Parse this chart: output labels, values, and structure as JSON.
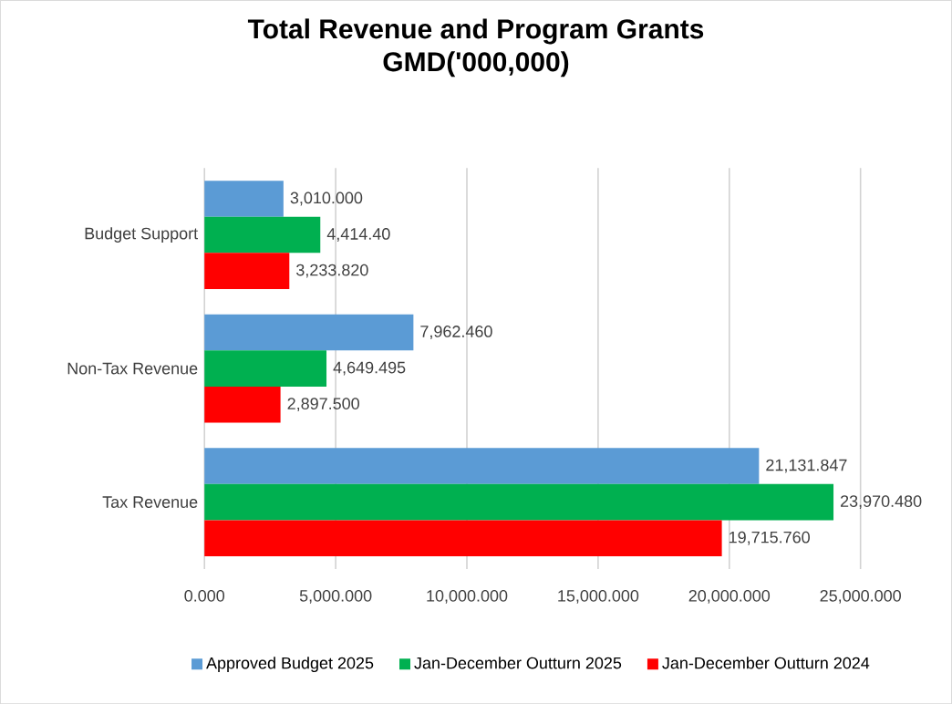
{
  "chart_data": {
    "type": "bar",
    "orientation": "horizontal",
    "title": "Total Revenue and Program Grants",
    "subtitle": "GMD('000,000)",
    "categories": [
      "Budget Support",
      "Non-Tax Revenue",
      "Tax Revenue"
    ],
    "series": [
      {
        "name": "Approved Budget 2025",
        "color": "#5b9bd5",
        "values": [
          3010.0,
          7962.46,
          21131.847
        ],
        "value_labels": [
          "3,010.000",
          "7,962.460",
          "21,131.847"
        ]
      },
      {
        "name": "Jan-December Outturn 2025",
        "color": "#00b050",
        "values": [
          4414.4,
          4649.495,
          23970.48
        ],
        "value_labels": [
          "4,414.40",
          "4,649.495",
          "23,970.480"
        ]
      },
      {
        "name": "Jan-December Outturn 2024",
        "color": "#ff0000",
        "values": [
          3233.82,
          2897.5,
          19715.76
        ],
        "value_labels": [
          "3,233.820",
          "2,897.500",
          "19,715.760"
        ]
      }
    ],
    "xlim": [
      0,
      25000
    ],
    "xticks": [
      {
        "value": 0,
        "label": "0.000"
      },
      {
        "value": 5000,
        "label": "5,000.000"
      },
      {
        "value": 10000,
        "label": "10,000.000"
      },
      {
        "value": 15000,
        "label": "15,000.000"
      },
      {
        "value": 20000,
        "label": "20,000.000"
      },
      {
        "value": 25000,
        "label": "25,000.000"
      }
    ],
    "grid": "x",
    "legend": "bottom"
  }
}
